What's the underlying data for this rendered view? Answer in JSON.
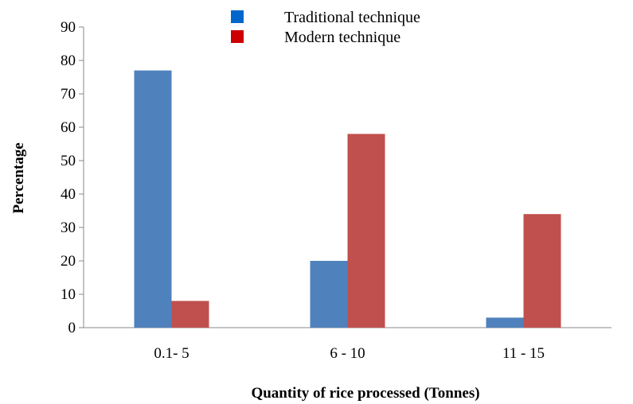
{
  "chart_data": {
    "type": "bar",
    "categories": [
      "0.1- 5",
      "6 - 10",
      "11 - 15"
    ],
    "series": [
      {
        "name": "Traditional technique",
        "values": [
          77,
          20,
          3
        ],
        "color": "#4f81bd"
      },
      {
        "name": "Modern technique",
        "values": [
          8,
          58,
          34
        ],
        "color": "#c0504d"
      }
    ],
    "legend_colors": [
      "#0066cc",
      "#cc0000"
    ],
    "title": "",
    "xlabel": "Quantity of rice processed (Tonnes)",
    "ylabel": "Percentage",
    "ylim": [
      0,
      90
    ],
    "yticks": [
      0,
      10,
      20,
      30,
      40,
      50,
      60,
      70,
      80,
      90
    ],
    "grid": false,
    "legend_position": "top-center"
  }
}
